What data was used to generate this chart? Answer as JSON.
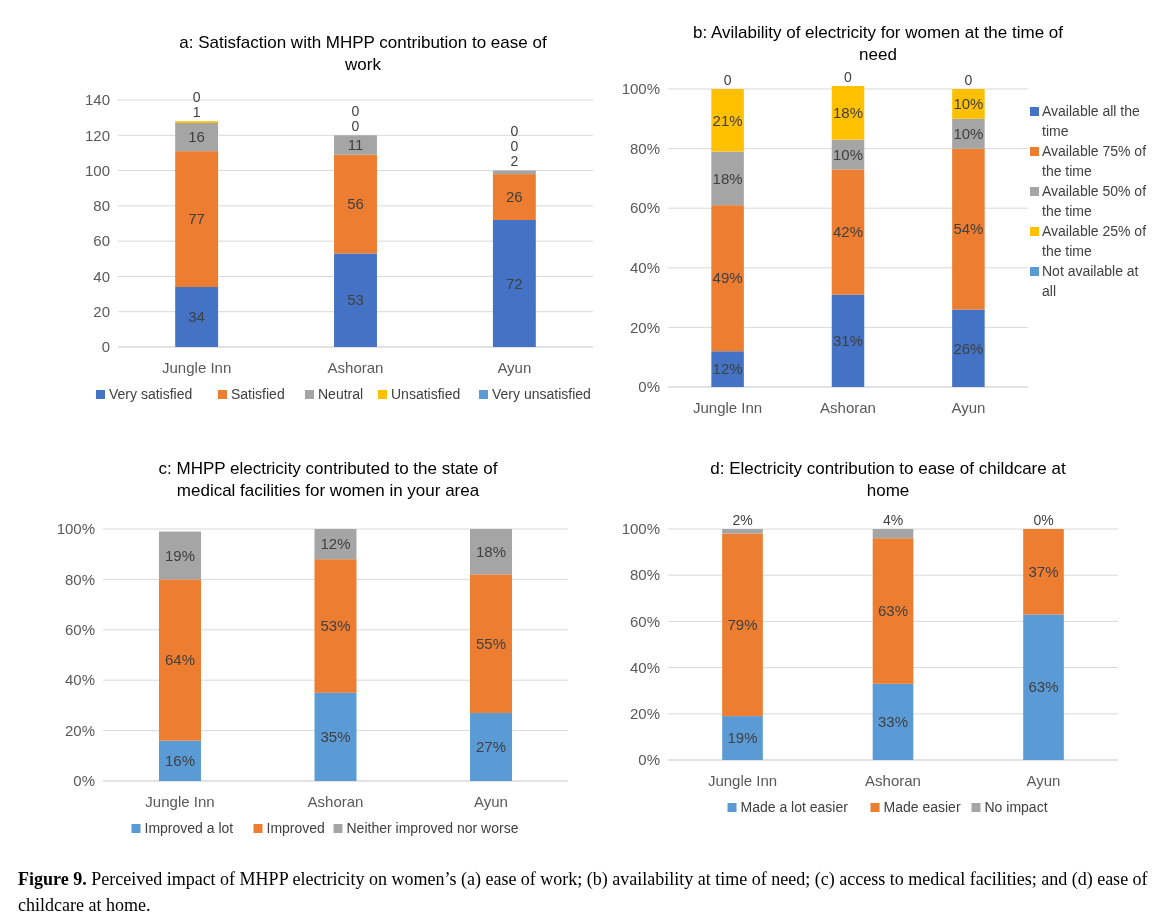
{
  "chart_data": [
    {
      "type": "bar",
      "stacked": true,
      "title": "a: Satisfaction with MHPP contribution to ease of work",
      "categories": [
        "Jungle Inn",
        "Ashoran",
        "Ayun"
      ],
      "series": [
        {
          "name": "Very satisfied",
          "color": "#4472c4",
          "values": [
            34,
            53,
            72
          ]
        },
        {
          "name": "Satisfied",
          "color": "#ed7d31",
          "values": [
            77,
            56,
            26
          ]
        },
        {
          "name": "Neutral",
          "color": "#a5a5a5",
          "values": [
            16,
            11,
            2
          ]
        },
        {
          "name": "Unsatisfied",
          "color": "#ffc000",
          "values": [
            1,
            0,
            0
          ]
        },
        {
          "name": "Very unsatisfied",
          "color": "#5b9bd5",
          "values": [
            0,
            0,
            0
          ]
        }
      ],
      "ylim": [
        0,
        140
      ],
      "yticks": [
        0,
        20,
        40,
        60,
        80,
        100,
        120,
        140
      ],
      "grid": "y",
      "legend": "bottom",
      "data_labels": true
    },
    {
      "type": "bar",
      "stacked": true,
      "title": "b: Avilability of electricity for women at the time of need",
      "categories": [
        "Jungle Inn",
        "Ashoran",
        "Ayun"
      ],
      "series": [
        {
          "name": "Available all the time",
          "color": "#4472c4",
          "values": [
            12,
            31,
            26
          ],
          "value_labels": [
            "12%",
            "31%",
            "26%"
          ]
        },
        {
          "name": "Available 75% of the time",
          "color": "#ed7d31",
          "values": [
            49,
            42,
            54
          ],
          "value_labels": [
            "49%",
            "42%",
            "54%"
          ]
        },
        {
          "name": "Available 50% of the time",
          "color": "#a5a5a5",
          "values": [
            18,
            10,
            10
          ],
          "value_labels": [
            "18%",
            "10%",
            "10%"
          ]
        },
        {
          "name": "Available 25% of the time",
          "color": "#ffc000",
          "values": [
            21,
            18,
            10
          ],
          "value_labels": [
            "21%",
            "18%",
            "10%"
          ]
        },
        {
          "name": "Not available at all",
          "color": "#5b9bd5",
          "values": [
            0,
            0,
            0
          ],
          "value_labels": [
            "0",
            "0",
            "0"
          ]
        }
      ],
      "ylim": [
        0,
        101
      ],
      "yticks": [
        {
          "value": 0,
          "label": "0%"
        },
        {
          "value": 20,
          "label": "20%"
        },
        {
          "value": 40,
          "label": "40%"
        },
        {
          "value": 60,
          "label": "60%"
        },
        {
          "value": 80,
          "label": "80%"
        },
        {
          "value": 100,
          "label": "100%"
        }
      ],
      "grid": "y",
      "legend": "right"
    },
    {
      "type": "bar",
      "stacked": true,
      "title": "c: MHPP electricity contributed to the state of medical facilities for women in your area",
      "categories": [
        "Jungle Inn",
        "Ashoran",
        "Ayun"
      ],
      "series": [
        {
          "name": "Improved a lot",
          "color": "#5b9bd5",
          "values": [
            16,
            35,
            27
          ],
          "value_labels": [
            "16%",
            "35%",
            "27%"
          ]
        },
        {
          "name": "Improved",
          "color": "#ed7d31",
          "values": [
            64,
            53,
            55
          ],
          "value_labels": [
            "64%",
            "53%",
            "55%"
          ]
        },
        {
          "name": "Neither improved nor worse",
          "color": "#a5a5a5",
          "values": [
            19,
            12,
            18
          ],
          "value_labels": [
            "19%",
            "12%",
            "18%"
          ]
        }
      ],
      "ylim": [
        0,
        100
      ],
      "yticks": [
        {
          "value": 0,
          "label": "0%"
        },
        {
          "value": 20,
          "label": "20%"
        },
        {
          "value": 40,
          "label": "40%"
        },
        {
          "value": 60,
          "label": "60%"
        },
        {
          "value": 80,
          "label": "80%"
        },
        {
          "value": 100,
          "label": "100%"
        }
      ],
      "grid": "y",
      "legend": "bottom"
    },
    {
      "type": "bar",
      "stacked": true,
      "title": "d: Electricity contribution to ease of childcare at home",
      "categories": [
        "Jungle Inn",
        "Ashoran",
        "Ayun"
      ],
      "series": [
        {
          "name": "Made a lot easier",
          "color": "#5b9bd5",
          "values": [
            19,
            33,
            63
          ],
          "value_labels": [
            "19%",
            "33%",
            "63%"
          ]
        },
        {
          "name": "Made easier",
          "color": "#ed7d31",
          "values": [
            79,
            63,
            37
          ],
          "value_labels": [
            "79%",
            "63%",
            "37%"
          ]
        },
        {
          "name": "No impact",
          "color": "#a5a5a5",
          "values": [
            2,
            4,
            0
          ],
          "value_labels": [
            "2%",
            "4%",
            "0%"
          ]
        }
      ],
      "ylim": [
        0,
        100
      ],
      "yticks": [
        {
          "value": 0,
          "label": "0%"
        },
        {
          "value": 20,
          "label": "20%"
        },
        {
          "value": 40,
          "label": "40%"
        },
        {
          "value": 60,
          "label": "60%"
        },
        {
          "value": 80,
          "label": "80%"
        },
        {
          "value": 100,
          "label": "100%"
        }
      ],
      "grid": "y",
      "legend": "bottom",
      "annotations": [
        "Figure 9.",
        "Perceived impact of MHPP electricity on women’s (a) ease of work; (b) availability at time of need; (c) access to medical facilities; and (d) ease of childcare at home."
      ]
    }
  ]
}
